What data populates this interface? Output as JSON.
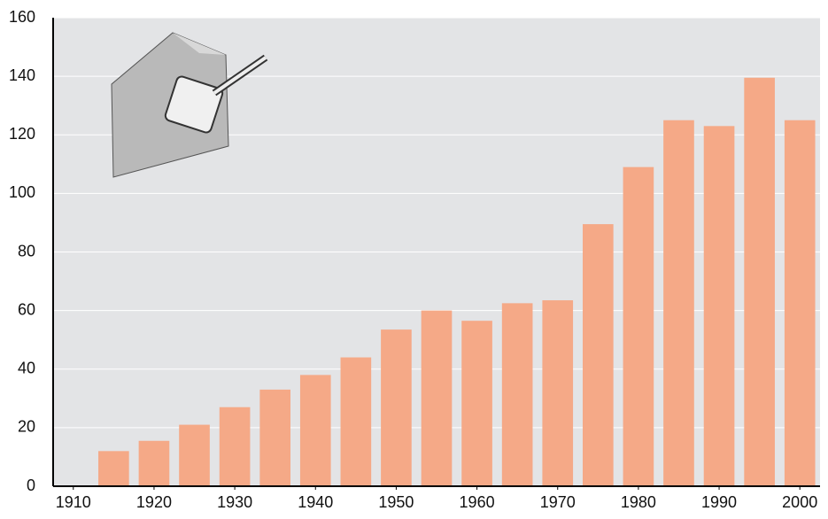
{
  "chart_data": {
    "type": "bar",
    "x": [
      1915,
      1920,
      1925,
      1930,
      1935,
      1940,
      1945,
      1950,
      1955,
      1960,
      1965,
      1970,
      1975,
      1980,
      1985,
      1990,
      1995,
      2000
    ],
    "values": [
      12,
      15.5,
      21,
      27,
      33,
      38,
      44,
      53.5,
      60,
      56.5,
      62.5,
      63.5,
      89.5,
      109,
      125,
      123,
      139.5,
      125
    ],
    "color": "#f5a987",
    "xlim": [
      1907.5,
      2002.5
    ],
    "xticks": [
      1910,
      1920,
      1930,
      1940,
      1950,
      1960,
      1970,
      1980,
      1990,
      2000
    ],
    "ylim": [
      0,
      160
    ],
    "yticks": [
      0,
      20,
      40,
      60,
      80,
      100,
      120,
      140,
      160
    ],
    "grid": true
  }
}
